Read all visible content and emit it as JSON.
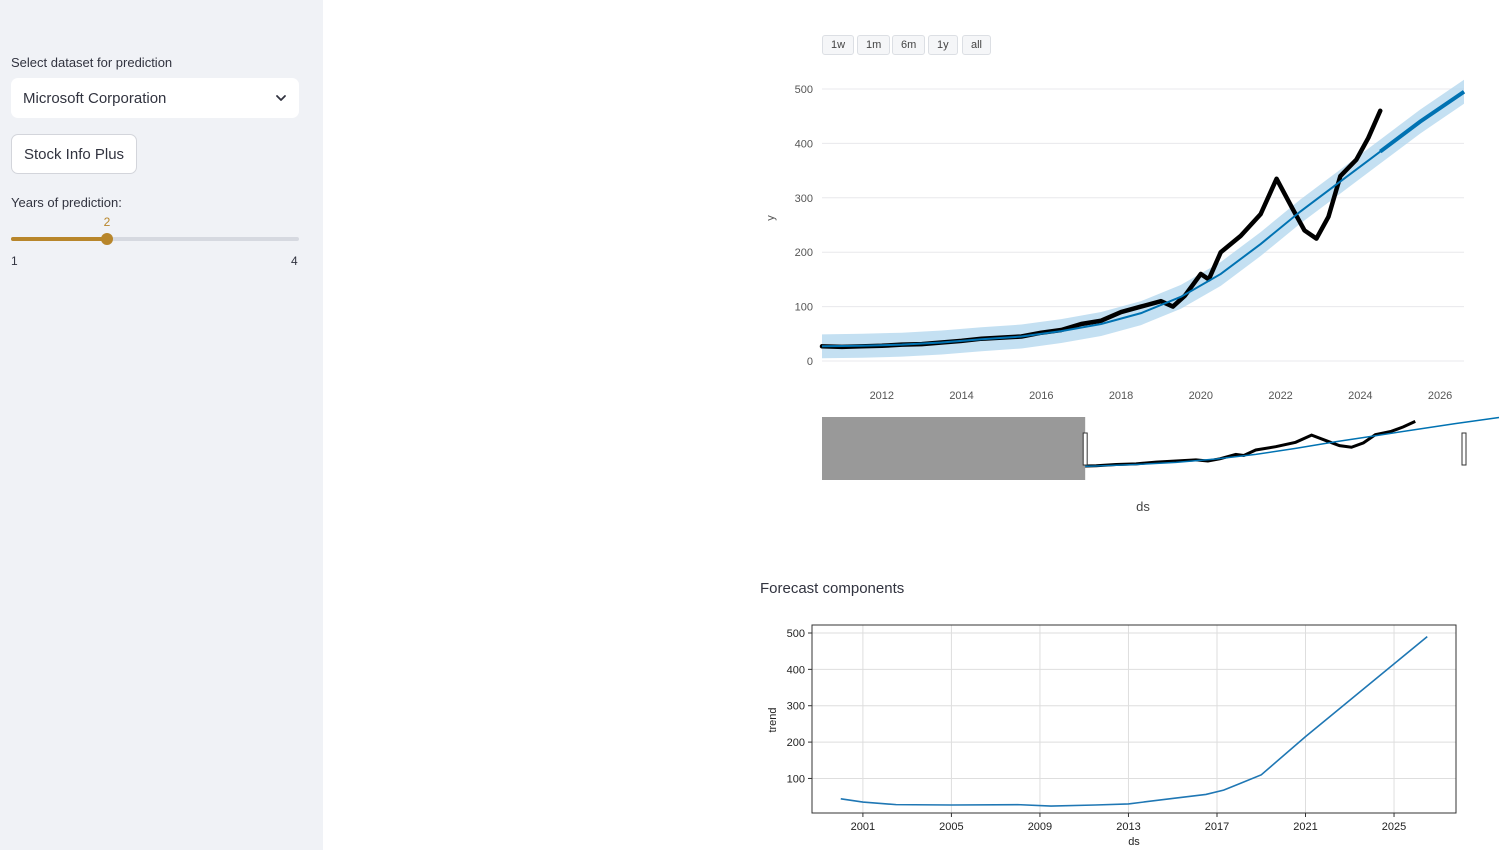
{
  "sidebar": {
    "select_label": "Select dataset for prediction",
    "selected_dataset": "Microsoft Corporation",
    "stock_button_label": "Stock Info Plus",
    "slider_label": "Years of prediction:",
    "slider_value": "2",
    "slider_min": "1",
    "slider_max": "4",
    "accent_color": "#b8862b"
  },
  "range_buttons": [
    "1w",
    "1m",
    "6m",
    "1y",
    "all"
  ],
  "forecast_chart": {
    "chart_data": {
      "type": "line",
      "ylabel": "y",
      "xlabel": "ds",
      "x_ticks": [
        "2012",
        "2014",
        "2016",
        "2018",
        "2020",
        "2022",
        "2024",
        "2026"
      ],
      "y_ticks": [
        "0",
        "100",
        "200",
        "300",
        "400",
        "500"
      ],
      "ylim": [
        0,
        500
      ],
      "xlim": [
        2010.5,
        2026.6
      ],
      "series": [
        {
          "role": "actual",
          "color": "#000000",
          "x": [
            2010.5,
            2011.0,
            2011.5,
            2012.0,
            2012.5,
            2013.0,
            2013.5,
            2014.0,
            2014.5,
            2015.0,
            2015.5,
            2016.0,
            2016.5,
            2017.0,
            2017.5,
            2018.0,
            2018.5,
            2019.0,
            2019.3,
            2019.6,
            2020.0,
            2020.2,
            2020.5,
            2021.0,
            2021.5,
            2021.9,
            2022.3,
            2022.6,
            2022.9,
            2023.2,
            2023.5,
            2023.9,
            2024.2,
            2024.5
          ],
          "y": [
            27,
            26,
            27,
            28,
            30,
            31,
            34,
            37,
            41,
            43,
            45,
            52,
            57,
            68,
            74,
            90,
            100,
            110,
            100,
            120,
            160,
            150,
            200,
            230,
            270,
            335,
            280,
            240,
            225,
            265,
            340,
            370,
            410,
            460
          ]
        },
        {
          "role": "forecast",
          "color": "#0072b2",
          "x": [
            2010.5,
            2011.5,
            2012.5,
            2013.5,
            2014.5,
            2015.5,
            2016.5,
            2017.5,
            2018.5,
            2019.5,
            2020.5,
            2021.5,
            2022.5,
            2023.5,
            2024.5,
            2025.5,
            2026.6
          ],
          "y": [
            27,
            28,
            30,
            34,
            40,
            45,
            55,
            68,
            88,
            118,
            160,
            215,
            275,
            330,
            385,
            440,
            495
          ]
        }
      ],
      "uncertainty_band_width": 22,
      "band_color": "#b0d6ee"
    },
    "navigator": {
      "selected_from": 2017.1,
      "selected_to": 2026.6
    }
  },
  "components": {
    "section_title": "Forecast components",
    "chart_data": {
      "type": "line",
      "ylabel": "trend",
      "xlabel": "ds",
      "x_ticks": [
        "2001",
        "2005",
        "2009",
        "2013",
        "2017",
        "2021",
        "2025"
      ],
      "y_ticks": [
        "100",
        "200",
        "300",
        "400",
        "500"
      ],
      "xlim": [
        1998.7,
        2027.8
      ],
      "ylim": [
        5,
        522
      ],
      "series": [
        {
          "name": "trend",
          "color": "#1f77b4",
          "x": [
            2000.0,
            2001.0,
            2002.5,
            2005,
            2008.0,
            2009.5,
            2011.5,
            2013.0,
            2015.0,
            2016.5,
            2017.3,
            2018.0,
            2019.0,
            2021.0,
            2023.0,
            2025.0,
            2026.5
          ],
          "y": [
            44,
            35,
            28,
            27,
            28,
            24,
            27,
            30,
            45,
            56,
            68,
            85,
            110,
            215,
            315,
            415,
            490
          ]
        }
      ]
    }
  }
}
